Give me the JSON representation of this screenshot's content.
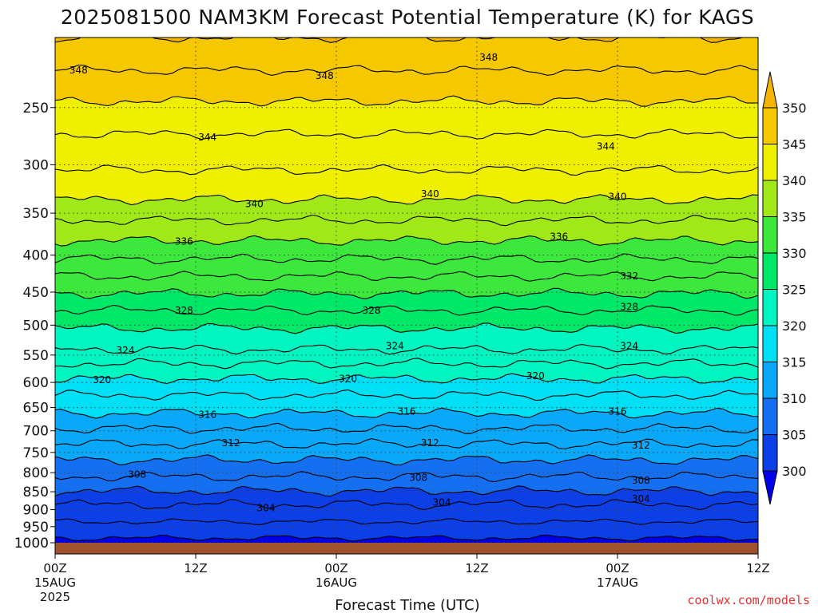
{
  "chart_data": {
    "type": "heatmap",
    "title": "2025081500 NAM3KM Forecast Potential Temperature (K) for KAGS",
    "xlabel": "Forecast Time (UTC)",
    "ylabel": "",
    "y_scale": "log",
    "y_reversed": true,
    "ylim": [
      1000,
      200
    ],
    "xlim_hours": [
      0,
      60
    ],
    "x_ticks": [
      {
        "hour": 0,
        "label": "00Z",
        "date": "15AUG",
        "year": "2025"
      },
      {
        "hour": 12,
        "label": "12Z",
        "date": "",
        "year": ""
      },
      {
        "hour": 24,
        "label": "00Z",
        "date": "16AUG",
        "year": ""
      },
      {
        "hour": 36,
        "label": "12Z",
        "date": "",
        "year": ""
      },
      {
        "hour": 48,
        "label": "00Z",
        "date": "17AUG",
        "year": ""
      },
      {
        "hour": 60,
        "label": "12Z",
        "date": "",
        "year": ""
      }
    ],
    "y_ticks": [
      250,
      300,
      350,
      400,
      450,
      500,
      550,
      600,
      650,
      700,
      750,
      800,
      850,
      900,
      950,
      1000
    ],
    "colorbar": {
      "levels": [
        300,
        305,
        310,
        315,
        320,
        325,
        330,
        335,
        340,
        345,
        350
      ],
      "colors": [
        "#0000e8",
        "#0c40e6",
        "#1470f0",
        "#0aa8f8",
        "#00e0f5",
        "#00f5c0",
        "#00e868",
        "#3ce83c",
        "#a0e818",
        "#eef000",
        "#f5c800",
        "#f5b400"
      ],
      "extend": "both"
    },
    "grid": true,
    "contour_interval": 2,
    "contour_labels": [
      {
        "value": 348,
        "hour": 2,
        "p": 222
      },
      {
        "value": 348,
        "hour": 23,
        "p": 226
      },
      {
        "value": 348,
        "hour": 37,
        "p": 213
      },
      {
        "value": 344,
        "hour": 13,
        "p": 275
      },
      {
        "value": 344,
        "hour": 47,
        "p": 283
      },
      {
        "value": 340,
        "hour": 17,
        "p": 340
      },
      {
        "value": 340,
        "hour": 32,
        "p": 329
      },
      {
        "value": 340,
        "hour": 48,
        "p": 332
      },
      {
        "value": 336,
        "hour": 11,
        "p": 383
      },
      {
        "value": 336,
        "hour": 43,
        "p": 377
      },
      {
        "value": 332,
        "hour": 49,
        "p": 428
      },
      {
        "value": 328,
        "hour": 11,
        "p": 477
      },
      {
        "value": 328,
        "hour": 27,
        "p": 477
      },
      {
        "value": 328,
        "hour": 49,
        "p": 472
      },
      {
        "value": 324,
        "hour": 6,
        "p": 542
      },
      {
        "value": 324,
        "hour": 29,
        "p": 534
      },
      {
        "value": 324,
        "hour": 49,
        "p": 534
      },
      {
        "value": 320,
        "hour": 4,
        "p": 595
      },
      {
        "value": 320,
        "hour": 25,
        "p": 593
      },
      {
        "value": 320,
        "hour": 41,
        "p": 588
      },
      {
        "value": 316,
        "hour": 13,
        "p": 665
      },
      {
        "value": 316,
        "hour": 30,
        "p": 658
      },
      {
        "value": 316,
        "hour": 48,
        "p": 658
      },
      {
        "value": 312,
        "hour": 15,
        "p": 728
      },
      {
        "value": 312,
        "hour": 32,
        "p": 728
      },
      {
        "value": 312,
        "hour": 50,
        "p": 733
      },
      {
        "value": 308,
        "hour": 7,
        "p": 805
      },
      {
        "value": 308,
        "hour": 31,
        "p": 813
      },
      {
        "value": 308,
        "hour": 50,
        "p": 820
      },
      {
        "value": 304,
        "hour": 18,
        "p": 895
      },
      {
        "value": 304,
        "hour": 33,
        "p": 880
      },
      {
        "value": 304,
        "hour": 50,
        "p": 870
      }
    ],
    "isentropes": [
      {
        "value": 350,
        "p": 200
      },
      {
        "value": 348,
        "p": 222
      },
      {
        "value": 346,
        "p": 245
      },
      {
        "value": 344,
        "p": 272
      },
      {
        "value": 342,
        "p": 305
      },
      {
        "value": 340,
        "p": 335
      },
      {
        "value": 338,
        "p": 358
      },
      {
        "value": 336,
        "p": 382
      },
      {
        "value": 334,
        "p": 405
      },
      {
        "value": 332,
        "p": 428
      },
      {
        "value": 330,
        "p": 452
      },
      {
        "value": 328,
        "p": 477
      },
      {
        "value": 326,
        "p": 505
      },
      {
        "value": 324,
        "p": 540
      },
      {
        "value": 322,
        "p": 565
      },
      {
        "value": 320,
        "p": 593
      },
      {
        "value": 318,
        "p": 625
      },
      {
        "value": 316,
        "p": 662
      },
      {
        "value": 314,
        "p": 695
      },
      {
        "value": 312,
        "p": 730
      },
      {
        "value": 310,
        "p": 768
      },
      {
        "value": 308,
        "p": 810
      },
      {
        "value": 306,
        "p": 848
      },
      {
        "value": 304,
        "p": 885
      },
      {
        "value": 302,
        "p": 935
      },
      {
        "value": 300,
        "p": 985
      }
    ]
  },
  "credit": "coolwx.com/models",
  "colors": {
    "ground": "#a0522d",
    "contour": "#000000",
    "credit": "#e63030"
  }
}
